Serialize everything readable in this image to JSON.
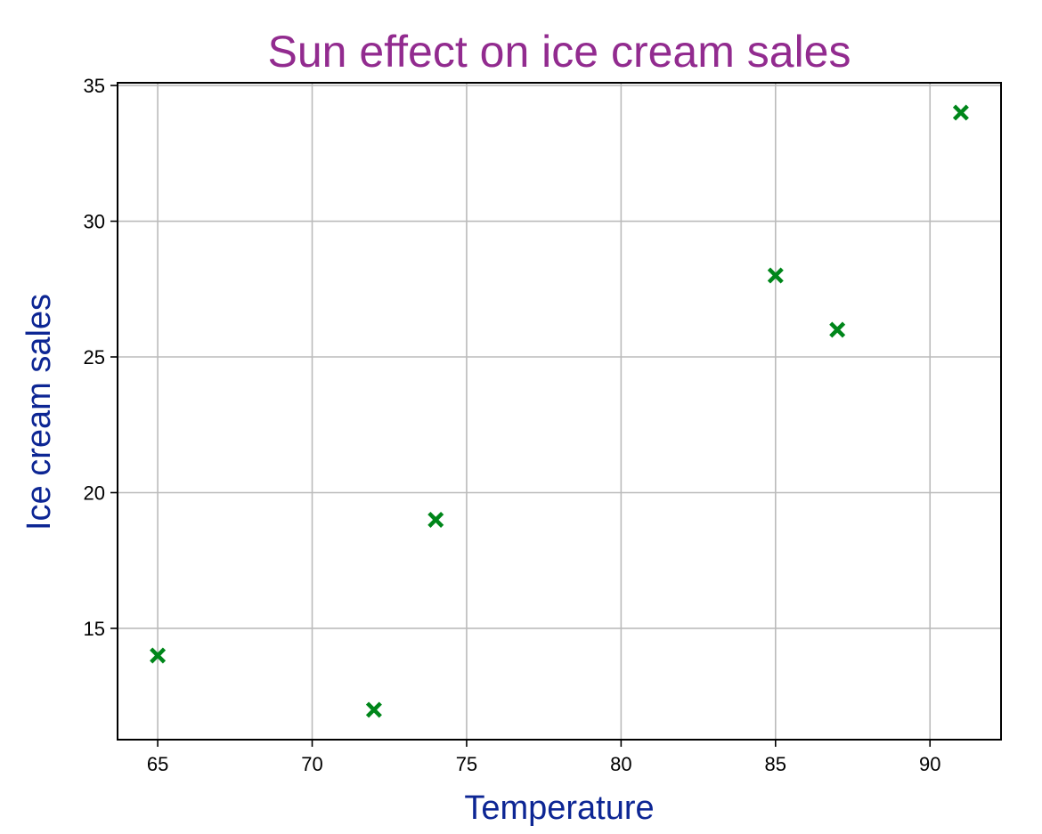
{
  "chart_data": {
    "type": "scatter",
    "title": "Sun effect on ice cream sales",
    "xlabel": "Temperature",
    "ylabel": "Ice cream sales",
    "xlim": [
      63.7,
      92.3
    ],
    "ylim": [
      10.9,
      35.1
    ],
    "xticks": [
      65,
      70,
      75,
      80,
      85,
      90
    ],
    "yticks": [
      15,
      20,
      25,
      30,
      35
    ],
    "grid": true,
    "marker": "filled-x",
    "points": [
      {
        "x": 65,
        "y": 14
      },
      {
        "x": 72,
        "y": 12
      },
      {
        "x": 74,
        "y": 19
      },
      {
        "x": 85,
        "y": 28
      },
      {
        "x": 87,
        "y": 26
      },
      {
        "x": 91,
        "y": 34
      }
    ],
    "colors": {
      "title": "#922b8f",
      "axis_label": "#0d2694",
      "marker": "#00861a",
      "grid": "#bbbbbb",
      "axes": "#000000"
    }
  }
}
